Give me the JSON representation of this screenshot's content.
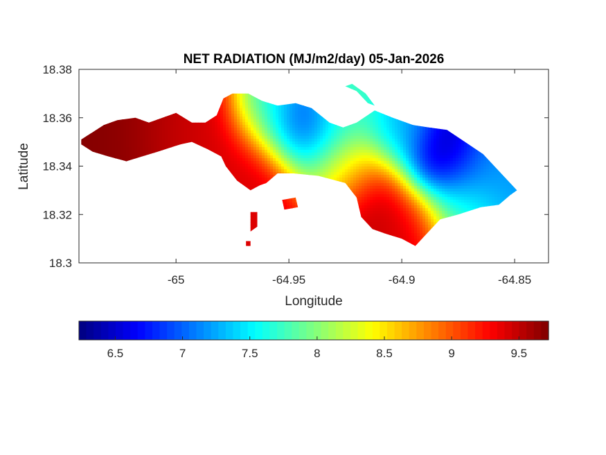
{
  "chart_data": {
    "type": "heatmap",
    "title": "NET RADIATION (MJ/m2/day) 05-Jan-2026",
    "xlabel": "Longitude",
    "ylabel": "Latitude",
    "xlim": [
      -65.043,
      -64.835
    ],
    "ylim": [
      18.3,
      18.38
    ],
    "xticks": [
      -65,
      -64.95,
      -64.9,
      -64.85
    ],
    "xtick_labels": [
      "-65",
      "-64.95",
      "-64.9",
      "-64.85"
    ],
    "yticks": [
      18.3,
      18.32,
      18.34,
      18.36,
      18.38
    ],
    "ytick_labels": [
      "18.3",
      "18.32",
      "18.34",
      "18.36",
      "18.38"
    ],
    "colormap": "jet",
    "color_range": [
      6.23,
      9.72
    ],
    "colorbar_ticks": [
      6.5,
      7,
      7.5,
      8,
      8.5,
      9,
      9.5
    ],
    "colorbar_tick_labels": [
      "6.5",
      "7",
      "7.5",
      "8",
      "8.5",
      "9",
      "9.5"
    ],
    "colorbar_orientation": "horizontal-below",
    "grid": false,
    "value_centers": [
      {
        "lon": -65.025,
        "lat": 18.351,
        "value": 9.7,
        "spread": 0.02
      },
      {
        "lon": -64.995,
        "lat": 18.352,
        "value": 9.4,
        "spread": 0.015
      },
      {
        "lon": -64.965,
        "lat": 18.338,
        "value": 9.4,
        "spread": 0.015
      },
      {
        "lon": -64.912,
        "lat": 18.328,
        "value": 9.5,
        "spread": 0.012
      },
      {
        "lon": -64.895,
        "lat": 18.316,
        "value": 9.4,
        "spread": 0.01
      },
      {
        "lon": -64.967,
        "lat": 18.321,
        "value": 9.4,
        "spread": 0.01
      },
      {
        "lon": -64.945,
        "lat": 18.356,
        "value": 6.3,
        "spread": 0.01
      },
      {
        "lon": -64.883,
        "lat": 18.341,
        "value": 6.3,
        "spread": 0.011
      },
      {
        "lon": -64.902,
        "lat": 18.353,
        "value": 7.3,
        "spread": 0.01
      },
      {
        "lon": -64.862,
        "lat": 18.335,
        "value": 7.2,
        "spread": 0.012
      },
      {
        "lon": -64.935,
        "lat": 18.349,
        "value": 7.5,
        "spread": 0.012
      },
      {
        "lon": -64.925,
        "lat": 18.363,
        "value": 7.8,
        "spread": 0.01
      },
      {
        "lon": -64.958,
        "lat": 18.363,
        "value": 7.6,
        "spread": 0.01
      },
      {
        "lon": -64.875,
        "lat": 18.322,
        "value": 7.8,
        "spread": 0.01
      },
      {
        "lon": -64.925,
        "lat": 18.34,
        "value": 8.6,
        "spread": 0.01
      }
    ],
    "land_outline": [
      [
        -65.042,
        18.351
      ],
      [
        -65.037,
        18.354
      ],
      [
        -65.032,
        18.357
      ],
      [
        -65.026,
        18.359
      ],
      [
        -65.018,
        18.36
      ],
      [
        -65.012,
        18.358
      ],
      [
        -65.006,
        18.36
      ],
      [
        -65.0,
        18.362
      ],
      [
        -64.993,
        18.358
      ],
      [
        -64.987,
        18.358
      ],
      [
        -64.982,
        18.361
      ],
      [
        -64.979,
        18.368
      ],
      [
        -64.975,
        18.37
      ],
      [
        -64.968,
        18.37
      ],
      [
        -64.962,
        18.367
      ],
      [
        -64.955,
        18.365
      ],
      [
        -64.947,
        18.366
      ],
      [
        -64.94,
        18.364
      ],
      [
        -64.932,
        18.358
      ],
      [
        -64.926,
        18.356
      ],
      [
        -64.92,
        18.358
      ],
      [
        -64.912,
        18.363
      ],
      [
        -64.904,
        18.36
      ],
      [
        -64.895,
        18.357
      ],
      [
        -64.888,
        18.356
      ],
      [
        -64.88,
        18.355
      ],
      [
        -64.872,
        18.35
      ],
      [
        -64.864,
        18.345
      ],
      [
        -64.857,
        18.338
      ],
      [
        -64.852,
        18.333
      ],
      [
        -64.849,
        18.33
      ],
      [
        -64.852,
        18.328
      ],
      [
        -64.857,
        18.324
      ],
      [
        -64.865,
        18.323
      ],
      [
        -64.875,
        18.32
      ],
      [
        -64.883,
        18.318
      ],
      [
        -64.89,
        18.311
      ],
      [
        -64.894,
        18.307
      ],
      [
        -64.9,
        18.31
      ],
      [
        -64.907,
        18.312
      ],
      [
        -64.913,
        18.314
      ],
      [
        -64.918,
        18.319
      ],
      [
        -64.92,
        18.327
      ],
      [
        -64.925,
        18.333
      ],
      [
        -64.937,
        18.336
      ],
      [
        -64.948,
        18.337
      ],
      [
        -64.955,
        18.337
      ],
      [
        -64.96,
        18.333
      ],
      [
        -64.963,
        18.332
      ],
      [
        -64.967,
        18.33
      ],
      [
        -64.973,
        18.334
      ],
      [
        -64.978,
        18.34
      ],
      [
        -64.98,
        18.344
      ],
      [
        -64.986,
        18.347
      ],
      [
        -64.993,
        18.35
      ],
      [
        -64.998,
        18.349
      ],
      [
        -65.008,
        18.346
      ],
      [
        -65.015,
        18.344
      ],
      [
        -65.022,
        18.342
      ],
      [
        -65.03,
        18.344
      ],
      [
        -65.037,
        18.346
      ],
      [
        -65.042,
        18.349
      ]
    ],
    "islets": [
      [
        [
          -64.925,
          18.373
        ],
        [
          -64.92,
          18.371
        ],
        [
          -64.915,
          18.366
        ],
        [
          -64.912,
          18.365
        ],
        [
          -64.916,
          18.37
        ],
        [
          -64.922,
          18.374
        ]
      ],
      [
        [
          -64.953,
          18.326
        ],
        [
          -64.947,
          18.327
        ],
        [
          -64.946,
          18.323
        ],
        [
          -64.952,
          18.322
        ]
      ],
      [
        [
          -64.967,
          18.321
        ],
        [
          -64.964,
          18.321
        ],
        [
          -64.964,
          18.315
        ],
        [
          -64.967,
          18.313
        ]
      ],
      [
        [
          -64.969,
          18.309
        ],
        [
          -64.967,
          18.309
        ],
        [
          -64.967,
          18.307
        ],
        [
          -64.969,
          18.307
        ]
      ]
    ]
  }
}
